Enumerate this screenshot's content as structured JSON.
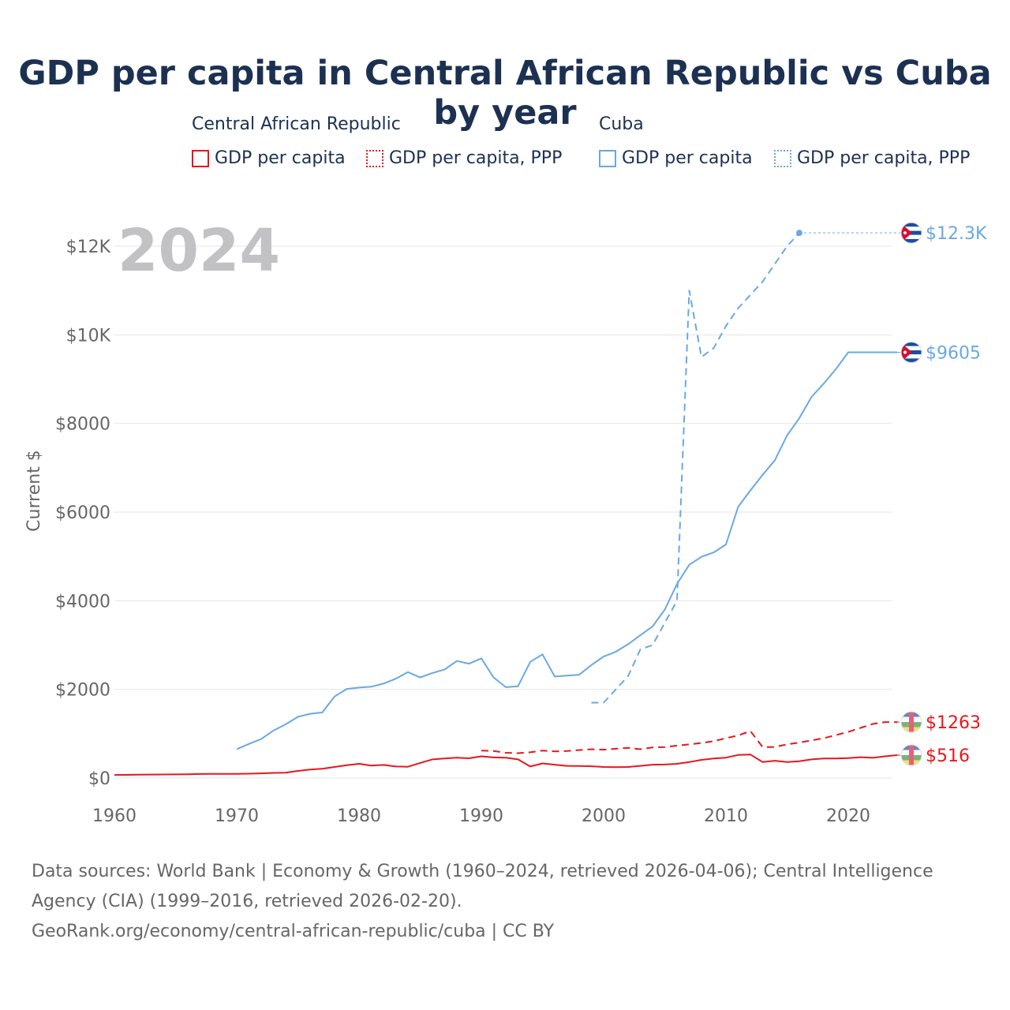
{
  "chart_data": {
    "type": "line",
    "title": "GDP per capita in Central African Republic vs Cuba by year",
    "ylabel": "Current $",
    "xlabel": "",
    "year_watermark": "2024",
    "xlim": [
      1960,
      2024
    ],
    "ylim": [
      0,
      13000
    ],
    "x_ticks": [
      1960,
      1970,
      1980,
      1990,
      2000,
      2010,
      2020
    ],
    "y_ticks": [
      0,
      2000,
      4000,
      6000,
      8000,
      10000,
      12000
    ],
    "y_tick_labels": [
      "$0",
      "$2000",
      "$4000",
      "$6000",
      "$8000",
      "$10K",
      "$12K"
    ],
    "legend": {
      "groups": [
        {
          "country": "Central African Republic",
          "items": [
            "GDP per capita",
            "GDP per capita, PPP"
          ]
        },
        {
          "country": "Cuba",
          "items": [
            "GDP per capita",
            "GDP per capita, PPP"
          ]
        }
      ]
    },
    "colors": {
      "car": "#e8161c",
      "cuba": "#6aa8e3"
    },
    "series": [
      {
        "name": "Cuba GDP per capita",
        "country": "Cuba",
        "style": "solid",
        "color": "#6aa8e3",
        "end_label": "$9605",
        "x": [
          1970,
          1971,
          1972,
          1973,
          1974,
          1975,
          1976,
          1977,
          1978,
          1979,
          1980,
          1981,
          1982,
          1983,
          1984,
          1985,
          1986,
          1987,
          1988,
          1989,
          1990,
          1991,
          1992,
          1993,
          1994,
          1995,
          1996,
          1997,
          1998,
          1999,
          2000,
          2001,
          2002,
          2003,
          2004,
          2005,
          2006,
          2007,
          2008,
          2009,
          2010,
          2011,
          2012,
          2013,
          2014,
          2015,
          2016,
          2017,
          2018,
          2019,
          2020,
          2021,
          2022,
          2023,
          2024
        ],
        "y": [
          650,
          770,
          880,
          1070,
          1210,
          1380,
          1450,
          1480,
          1840,
          2010,
          2040,
          2060,
          2130,
          2240,
          2390,
          2270,
          2370,
          2450,
          2640,
          2580,
          2700,
          2270,
          2050,
          2070,
          2620,
          2790,
          2290,
          2310,
          2330,
          2550,
          2740,
          2850,
          3020,
          3220,
          3420,
          3800,
          4380,
          4810,
          4990,
          5090,
          5270,
          6120,
          6490,
          6840,
          7170,
          7730,
          8120,
          8600,
          8900,
          9230,
          9605,
          9605,
          9605,
          9605,
          9605
        ]
      },
      {
        "name": "Cuba GDP per capita, PPP",
        "country": "Cuba",
        "style": "dashed",
        "color": "#6aa8e3",
        "end_label": "$12.3K",
        "x": [
          1999,
          2000,
          2001,
          2002,
          2003,
          2004,
          2005,
          2006,
          2007,
          2008,
          2009,
          2010,
          2011,
          2012,
          2013,
          2014,
          2015,
          2016
        ],
        "y": [
          1700,
          1700,
          2000,
          2300,
          2900,
          3000,
          3500,
          4000,
          11000,
          9500,
          9700,
          10200,
          10600,
          10900,
          11200,
          11600,
          12000,
          12300
        ]
      },
      {
        "name": "Central African Republic GDP per capita",
        "country": "Central African Republic",
        "style": "solid",
        "color": "#e8161c",
        "end_label": "$516",
        "x": [
          1960,
          1961,
          1962,
          1963,
          1964,
          1965,
          1966,
          1967,
          1968,
          1969,
          1970,
          1971,
          1972,
          1973,
          1974,
          1975,
          1976,
          1977,
          1978,
          1979,
          1980,
          1981,
          1982,
          1983,
          1984,
          1985,
          1986,
          1987,
          1988,
          1989,
          1990,
          1991,
          1992,
          1993,
          1994,
          1995,
          1996,
          1997,
          1998,
          1999,
          2000,
          2001,
          2002,
          2003,
          2004,
          2005,
          2006,
          2007,
          2008,
          2009,
          2010,
          2011,
          2012,
          2013,
          2014,
          2015,
          2016,
          2017,
          2018,
          2019,
          2020,
          2021,
          2022,
          2023,
          2024
        ],
        "y": [
          70,
          72,
          75,
          78,
          80,
          82,
          85,
          90,
          95,
          95,
          95,
          98,
          105,
          115,
          120,
          160,
          190,
          210,
          250,
          290,
          320,
          280,
          295,
          260,
          255,
          340,
          420,
          440,
          460,
          445,
          490,
          465,
          460,
          420,
          260,
          330,
          300,
          275,
          270,
          265,
          250,
          245,
          250,
          275,
          300,
          305,
          320,
          360,
          410,
          440,
          460,
          520,
          530,
          360,
          390,
          360,
          380,
          420,
          440,
          440,
          450,
          470,
          455,
          490,
          516
        ]
      },
      {
        "name": "Central African Republic GDP per capita, PPP",
        "country": "Central African Republic",
        "style": "dashed",
        "color": "#e8161c",
        "end_label": "$1263",
        "x": [
          1990,
          1991,
          1992,
          1993,
          1994,
          1995,
          1996,
          1997,
          1998,
          1999,
          2000,
          2001,
          2002,
          2003,
          2004,
          2005,
          2006,
          2007,
          2008,
          2009,
          2010,
          2011,
          2012,
          2013,
          2014,
          2015,
          2016,
          2017,
          2018,
          2019,
          2020,
          2021,
          2022,
          2023,
          2024
        ],
        "y": [
          620,
          610,
          570,
          560,
          580,
          620,
          600,
          610,
          630,
          650,
          640,
          660,
          680,
          650,
          690,
          700,
          730,
          760,
          790,
          830,
          900,
          960,
          1060,
          700,
          700,
          760,
          800,
          850,
          900,
          970,
          1040,
          1130,
          1220,
          1263,
          1263
        ]
      }
    ]
  },
  "footer": {
    "line1": "Data sources: World Bank | Economy & Growth (1960–2024, retrieved 2026-04-06); Central Intelligence",
    "line2": "Agency (CIA) (1999–2016, retrieved 2026-02-20).",
    "line3": "GeoRank.org/economy/central-african-republic/cuba | CC BY"
  }
}
